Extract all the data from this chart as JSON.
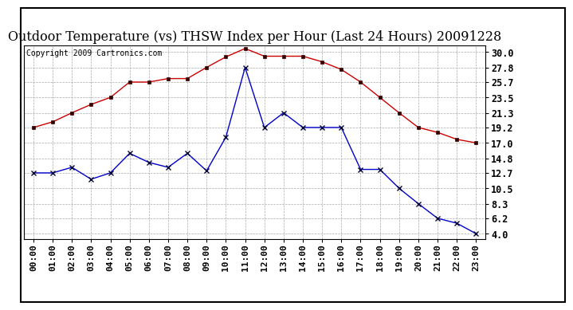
{
  "title": "Outdoor Temperature (vs) THSW Index per Hour (Last 24 Hours) 20091228",
  "copyright": "Copyright 2009 Cartronics.com",
  "hours": [
    "00:00",
    "01:00",
    "02:00",
    "03:00",
    "04:00",
    "05:00",
    "06:00",
    "07:00",
    "08:00",
    "09:00",
    "10:00",
    "11:00",
    "12:00",
    "13:00",
    "14:00",
    "15:00",
    "16:00",
    "17:00",
    "18:00",
    "19:00",
    "20:00",
    "21:00",
    "22:00",
    "23:00"
  ],
  "temp_red": [
    19.2,
    20.0,
    21.3,
    22.5,
    23.5,
    25.7,
    25.7,
    26.2,
    26.2,
    27.8,
    29.3,
    30.5,
    29.4,
    29.4,
    29.4,
    28.6,
    27.5,
    25.7,
    23.5,
    21.3,
    19.2,
    18.5,
    17.5,
    17.0
  ],
  "thsw_blue": [
    12.7,
    12.7,
    13.5,
    11.8,
    12.7,
    15.5,
    14.2,
    13.5,
    15.5,
    13.0,
    17.8,
    27.8,
    19.2,
    21.3,
    19.2,
    19.2,
    19.2,
    13.2,
    13.2,
    10.5,
    8.3,
    6.2,
    5.5,
    4.0
  ],
  "yticks": [
    4.0,
    6.2,
    8.3,
    10.5,
    12.7,
    14.8,
    17.0,
    19.2,
    21.3,
    23.5,
    25.7,
    27.8,
    30.0
  ],
  "ylim": [
    3.2,
    31.0
  ],
  "xlim": [
    -0.5,
    23.5
  ],
  "bg_color": "#ffffff",
  "plot_bg_color": "#ffffff",
  "grid_color": "#aaaaaa",
  "red_color": "#cc0000",
  "blue_color": "#0000cc",
  "title_fontsize": 11.5,
  "copyright_fontsize": 7,
  "tick_fontsize": 8,
  "ytick_fontsize": 8.5
}
